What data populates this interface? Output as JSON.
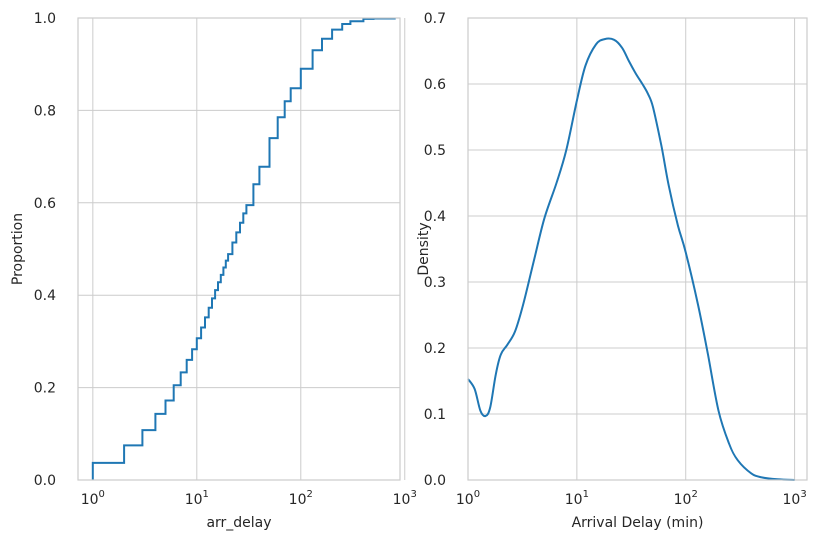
{
  "chart_data": [
    {
      "type": "line",
      "subtype": "ecdf-step",
      "xlabel": "arr_delay",
      "ylabel": "Proportion",
      "xscale": "log",
      "xlim": [
        0.72,
        900
      ],
      "ylim": [
        0,
        1
      ],
      "x_ticks": [
        {
          "base": "10",
          "exp": "0"
        },
        {
          "base": "10",
          "exp": "1"
        },
        {
          "base": "10",
          "exp": "2"
        },
        {
          "base": "10",
          "exp": "3"
        }
      ],
      "y_ticks": [
        "0.0",
        "0.2",
        "0.4",
        "0.6",
        "0.8",
        "1.0"
      ],
      "grid": true,
      "color": "#1f77b4",
      "x": [
        1,
        2,
        3,
        4,
        5,
        6,
        7,
        8,
        9,
        10,
        11,
        12,
        13,
        14,
        15,
        16,
        17,
        18,
        19,
        20,
        22,
        24,
        26,
        28,
        30,
        35,
        40,
        50,
        60,
        70,
        80,
        100,
        130,
        160,
        200,
        250,
        300,
        400,
        500,
        800
      ],
      "y": [
        0.037,
        0.075,
        0.108,
        0.143,
        0.172,
        0.205,
        0.233,
        0.26,
        0.283,
        0.307,
        0.33,
        0.352,
        0.373,
        0.393,
        0.411,
        0.428,
        0.444,
        0.46,
        0.475,
        0.489,
        0.514,
        0.536,
        0.557,
        0.577,
        0.595,
        0.64,
        0.678,
        0.74,
        0.785,
        0.82,
        0.848,
        0.89,
        0.93,
        0.955,
        0.975,
        0.987,
        0.993,
        0.998,
        0.999,
        1.0
      ]
    },
    {
      "type": "line",
      "subtype": "kde",
      "xlabel": "Arrival Delay (min)",
      "ylabel": "Density",
      "xscale": "log",
      "xlim": [
        1,
        1300
      ],
      "ylim": [
        0,
        0.7
      ],
      "x_ticks": [
        {
          "base": "10",
          "exp": "0"
        },
        {
          "base": "10",
          "exp": "1"
        },
        {
          "base": "10",
          "exp": "2"
        },
        {
          "base": "10",
          "exp": "3"
        }
      ],
      "y_ticks": [
        "0.0",
        "0.1",
        "0.2",
        "0.3",
        "0.4",
        "0.5",
        "0.6",
        "0.7"
      ],
      "grid": true,
      "color": "#1f77b4",
      "x": [
        1.0,
        1.15,
        1.3,
        1.45,
        1.6,
        1.8,
        2.0,
        2.3,
        2.7,
        3.2,
        4.0,
        5.0,
        6.5,
        8.0,
        10,
        12,
        15,
        18,
        22,
        26,
        30,
        35,
        40,
        45,
        50,
        60,
        70,
        85,
        100,
        130,
        160,
        200,
        250,
        300,
        400,
        500,
        700,
        1000
      ],
      "y": [
        0.153,
        0.138,
        0.105,
        0.097,
        0.11,
        0.16,
        0.19,
        0.205,
        0.225,
        0.265,
        0.33,
        0.395,
        0.45,
        0.5,
        0.575,
        0.628,
        0.66,
        0.668,
        0.667,
        0.655,
        0.635,
        0.615,
        0.6,
        0.585,
        0.565,
        0.505,
        0.445,
        0.385,
        0.345,
        0.265,
        0.19,
        0.105,
        0.055,
        0.03,
        0.01,
        0.004,
        0.001,
        0.0
      ]
    }
  ]
}
